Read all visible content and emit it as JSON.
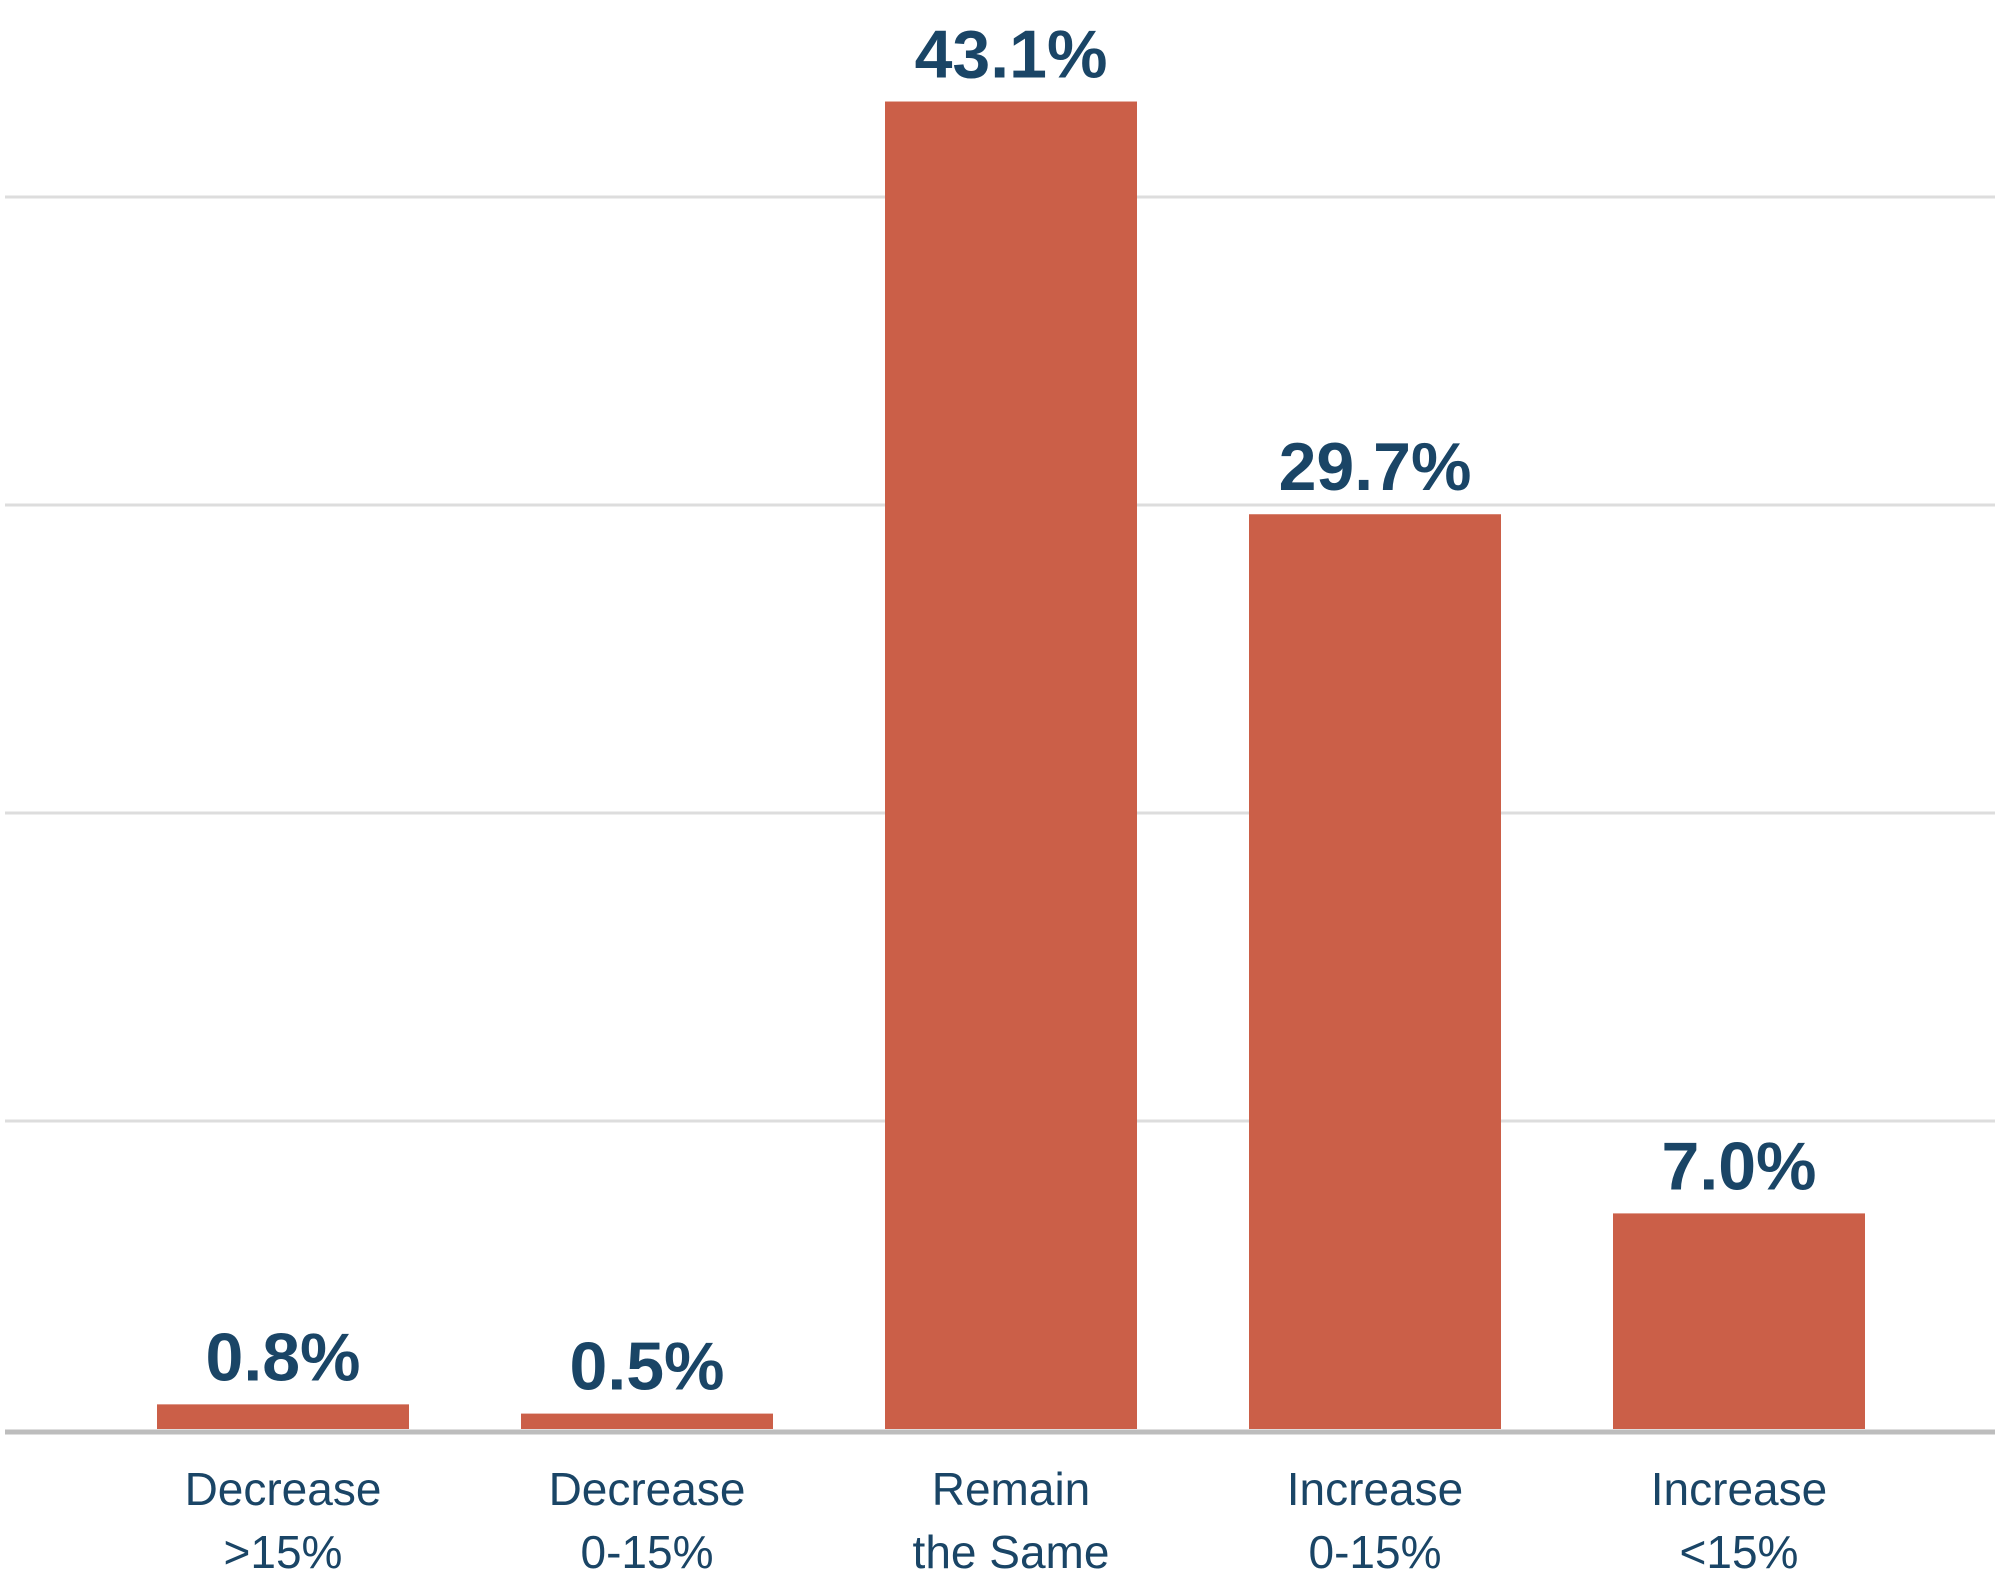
{
  "chart_data": {
    "type": "bar",
    "categories": [
      [
        "Decrease",
        ">15%"
      ],
      [
        "Decrease",
        "0-15%"
      ],
      [
        "Remain",
        "the Same"
      ],
      [
        "Increase",
        "0-15%"
      ],
      [
        "Increase",
        "<15%"
      ]
    ],
    "values": [
      0.8,
      0.5,
      43.1,
      29.7,
      7.0
    ],
    "value_labels": [
      "0.8%",
      "0.5%",
      "43.1%",
      "29.7%",
      "7.0%"
    ],
    "title": "",
    "xlabel": "",
    "ylabel": "",
    "ylim": [
      0,
      40
    ],
    "grid": true,
    "legend": "none",
    "y_tick_labels_shown": false
  },
  "colors": {
    "bar": "#cb5f48",
    "value_label": "#1a4566",
    "category_label": "#1a4566",
    "gridline": "#dddddd",
    "axis": "#bdbdbd"
  }
}
